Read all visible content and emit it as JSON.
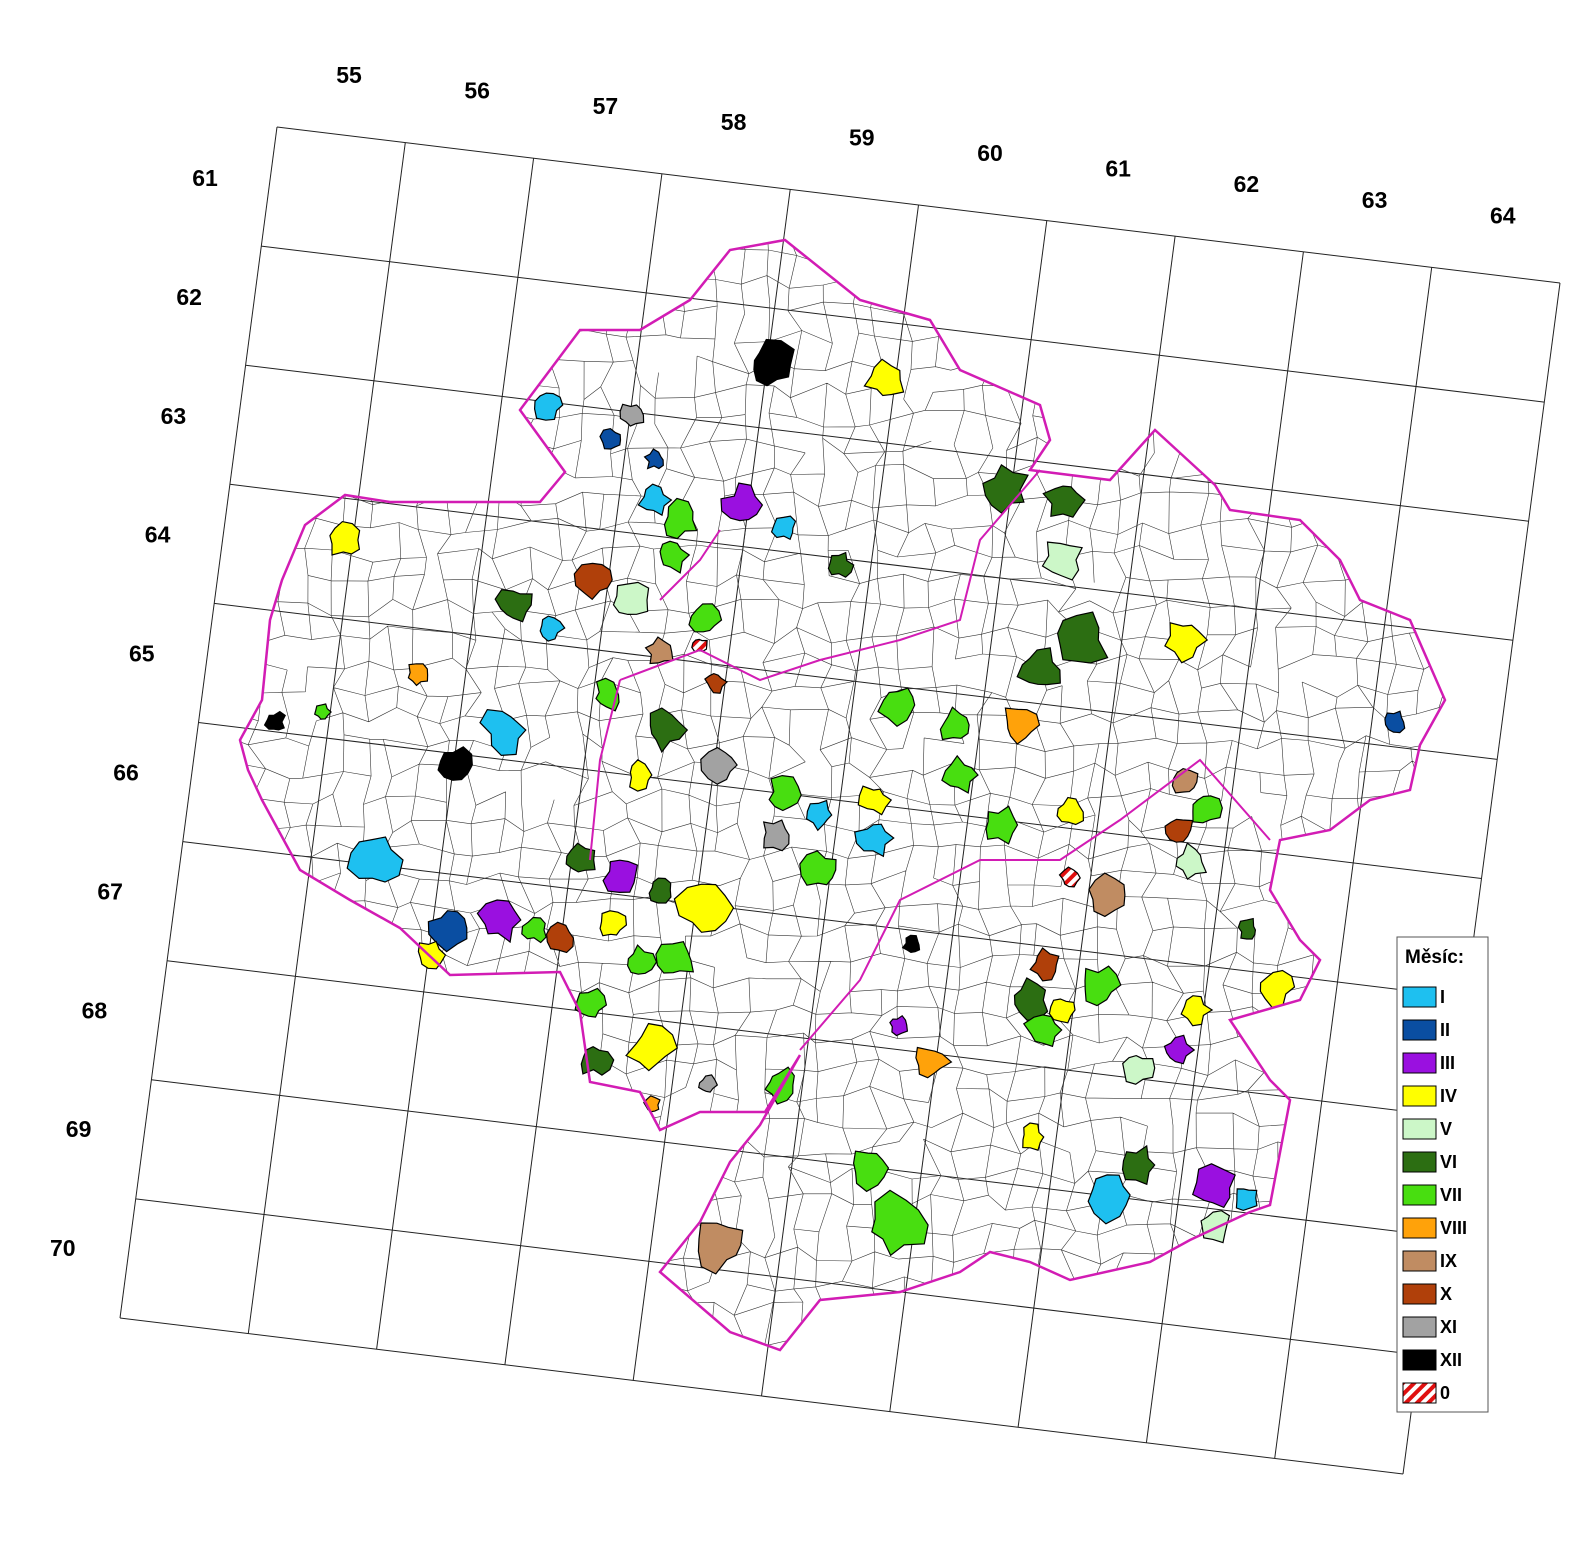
{
  "map": {
    "column_labels": [
      55,
      56,
      57,
      58,
      59,
      60,
      61,
      62,
      63,
      64
    ],
    "row_labels": [
      61,
      62,
      63,
      64,
      65,
      66,
      67,
      68,
      69,
      70
    ],
    "legend": {
      "title": "Měsíc:",
      "items": [
        {
          "label": "I",
          "color": "#1ec0f0"
        },
        {
          "label": "II",
          "color": "#0a4ea2"
        },
        {
          "label": "III",
          "color": "#9a10e0"
        },
        {
          "label": "IV",
          "color": "#ffff00"
        },
        {
          "label": "V",
          "color": "#ccf7c8"
        },
        {
          "label": "VI",
          "color": "#2c6e12"
        },
        {
          "label": "VII",
          "color": "#48de10"
        },
        {
          "label": "VIII",
          "color": "#ffa20a"
        },
        {
          "label": "IX",
          "color": "#c08c62"
        },
        {
          "label": "X",
          "color": "#b0400a"
        },
        {
          "label": "XI",
          "color": "#a2a2a2"
        },
        {
          "label": "XII",
          "color": "#000000"
        },
        {
          "label": "0",
          "color": "#e01010",
          "pattern": "hatch"
        }
      ]
    }
  }
}
